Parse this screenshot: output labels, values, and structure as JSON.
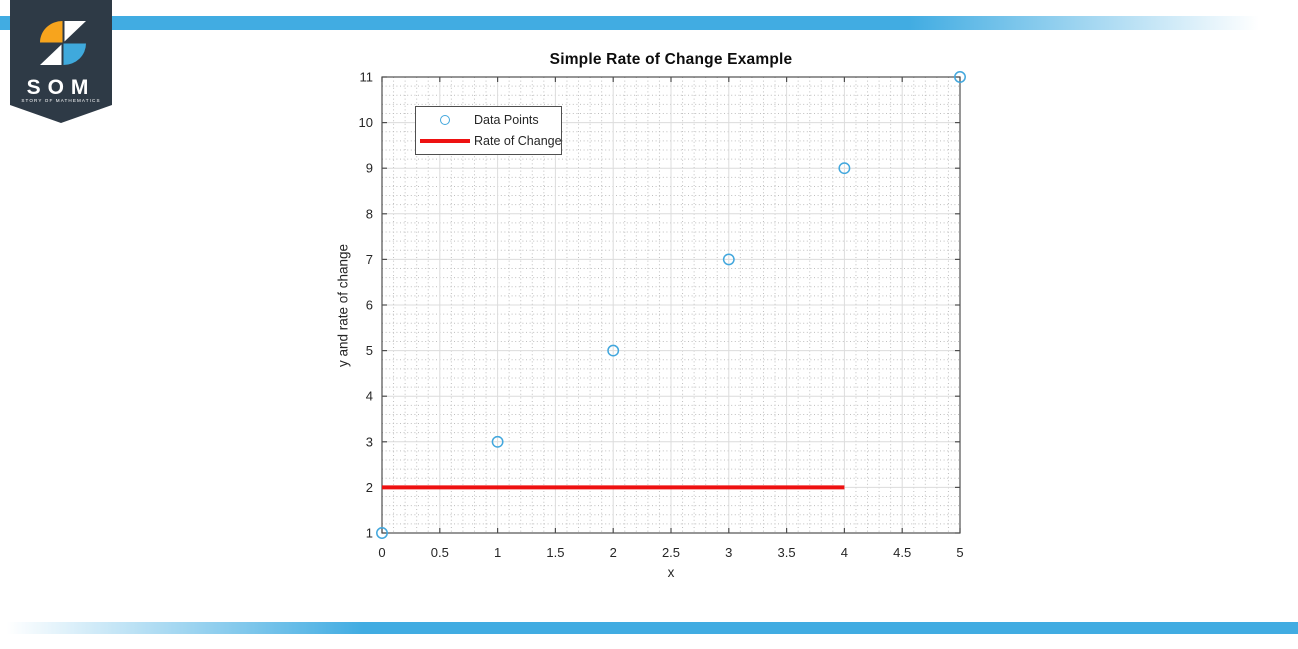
{
  "branding": {
    "logo_text": "SOM",
    "logo_subtext": "STORY OF MATHEMATICS",
    "banner_color": "#2e3a46",
    "icon_orange": "#f7a41d",
    "icon_blue": "#3fa9dc",
    "bar_color": "#41ace2"
  },
  "chart_data": {
    "type": "scatter",
    "title": "Simple Rate of Change Example",
    "xlabel": "x",
    "ylabel": "y and rate of change",
    "xlim": [
      0,
      5
    ],
    "ylim": [
      1,
      11
    ],
    "xticks": [
      0,
      0.5,
      1,
      1.5,
      2,
      2.5,
      3,
      3.5,
      4,
      4.5,
      5
    ],
    "yticks": [
      1,
      2,
      3,
      4,
      5,
      6,
      7,
      8,
      9,
      10,
      11
    ],
    "grid": true,
    "minor_grid": true,
    "x_minor_step": 0.1,
    "y_minor_step": 0.2,
    "series": [
      {
        "name": "Data Points",
        "type": "scatter",
        "marker": "circle",
        "color": "#42a7dd",
        "x": [
          0,
          1,
          2,
          3,
          4,
          5
        ],
        "y": [
          1,
          3,
          5,
          7,
          9,
          11
        ]
      },
      {
        "name": "Rate of Change",
        "type": "line",
        "color": "#ee1111",
        "width": 4,
        "x": [
          0,
          4
        ],
        "y": [
          2,
          2
        ]
      }
    ],
    "legend": {
      "position": "top-left",
      "items": [
        "Data Points",
        "Rate of Change"
      ]
    }
  }
}
